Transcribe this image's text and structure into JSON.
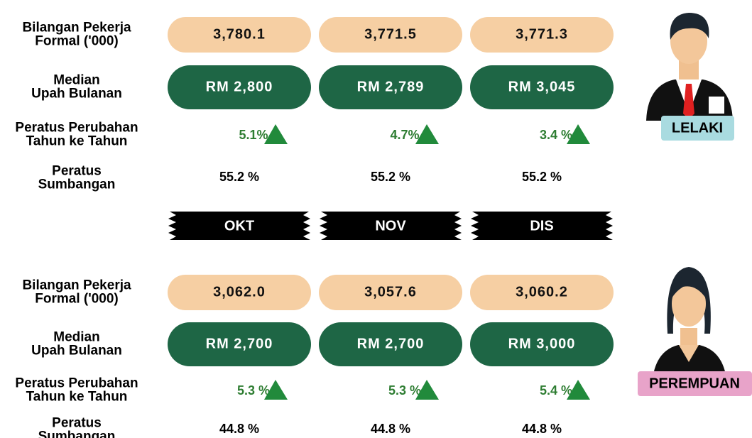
{
  "months": [
    "OKT",
    "NOV",
    "DIS"
  ],
  "sections": [
    {
      "label": "LELAKI",
      "rows": [
        {
          "label": [
            "Bilangan Pekerja",
            "Formal ('000)"
          ],
          "values": [
            "3,780.1",
            "3,771.5",
            "3,771.3"
          ]
        },
        {
          "label": [
            "Median",
            "Upah Bulanan"
          ],
          "values": [
            "RM 2,800",
            "RM 2,789",
            "RM 3,045"
          ]
        },
        {
          "label": [
            "Peratus Perubahan",
            "Tahun ke Tahun"
          ],
          "values": [
            "5.1%",
            "4.7%",
            "3.4 %"
          ]
        },
        {
          "label": [
            "Peratus",
            "Sumbangan"
          ],
          "values": [
            "55.2 %",
            "55.2 %",
            "55.2 %"
          ]
        }
      ]
    },
    {
      "label": "PEREMPUAN",
      "rows": [
        {
          "label": [
            "Bilangan Pekerja",
            "Formal ('000)"
          ],
          "values": [
            "3,062.0",
            "3,057.6",
            "3,060.2"
          ]
        },
        {
          "label": [
            "Median",
            "Upah Bulanan"
          ],
          "values": [
            "RM 2,700",
            "RM 2,700",
            "RM 3,000"
          ]
        },
        {
          "label": [
            "Peratus Perubahan",
            "Tahun ke Tahun"
          ],
          "values": [
            "5.3 %",
            "5.3 %",
            "5.4 %"
          ]
        },
        {
          "label": [
            "Peratus",
            "Sumbangan"
          ],
          "values": [
            "44.8 %",
            "44.8 %",
            "44.8 %"
          ]
        }
      ]
    }
  ]
}
